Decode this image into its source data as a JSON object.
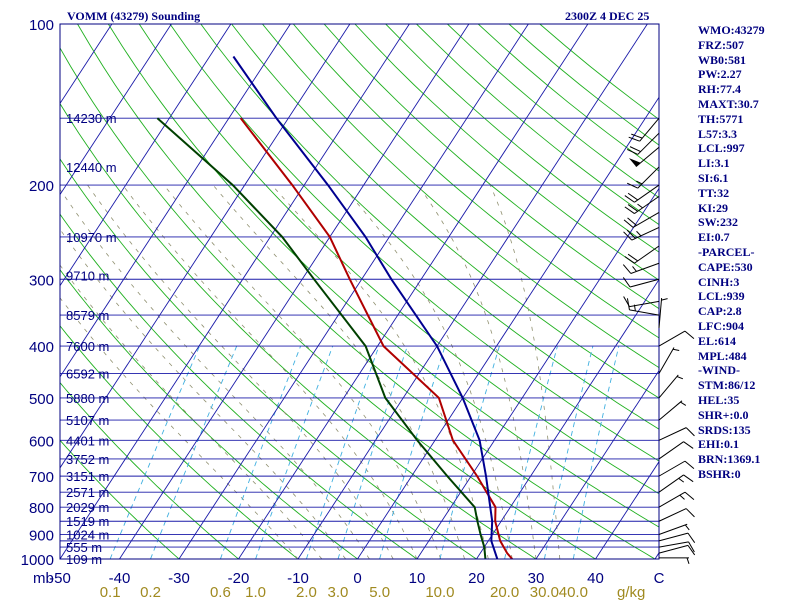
{
  "header": {
    "station": "VOMM (43279) Sounding",
    "time": "2300Z  4 DEC 25"
  },
  "indices": [
    "WMO:43279",
    "FRZ:507",
    "WB0:581",
    "PW:2.27",
    "RH:77.4",
    "MAXT:30.7",
    "TH:5771",
    "L57:3.3",
    "LCL:997",
    "LI:3.1",
    "SI:6.1",
    "TT:32",
    "KI:29",
    "SW:232",
    "EI:0.7",
    "-PARCEL-",
    "CAPE:530",
    "CINH:3",
    "LCL:939",
    "CAP:2.8",
    "LFC:904",
    "EL:614",
    "MPL:484",
    "-WIND-",
    "STM:86/12",
    "HEL:35",
    "SHR+:0.0",
    "SRDS:135",
    "EHI:0.1",
    "BRN:1369.1",
    "BSHR:0"
  ],
  "chart_data": {
    "type": "skew-t",
    "title": "VOMM (43279) Sounding",
    "xlabel": "C",
    "x_unit_label": "mb",
    "mixing_ratio_unit": "g/kg",
    "pressure_range": [
      1000,
      100
    ],
    "temperature_range": [
      -50,
      50
    ],
    "pressure_ticks": [
      {
        "p": 100,
        "label": "100"
      },
      {
        "p": 200,
        "label": "200"
      },
      {
        "p": 300,
        "label": "300"
      },
      {
        "p": 400,
        "label": "400"
      },
      {
        "p": 500,
        "label": "500"
      },
      {
        "p": 600,
        "label": "600"
      },
      {
        "p": 700,
        "label": "700"
      },
      {
        "p": 800,
        "label": "800"
      },
      {
        "p": 900,
        "label": "900"
      },
      {
        "p": 1000,
        "label": "1000"
      }
    ],
    "temperature_ticks": [
      {
        "t": -50,
        "label": "-50"
      },
      {
        "t": -40,
        "label": "-40"
      },
      {
        "t": -30,
        "label": "-30"
      },
      {
        "t": -20,
        "label": "-20"
      },
      {
        "t": -10,
        "label": "-10"
      },
      {
        "t": 0,
        "label": "0"
      },
      {
        "t": 10,
        "label": "10"
      },
      {
        "t": 20,
        "label": "20"
      },
      {
        "t": 30,
        "label": "30"
      },
      {
        "t": 40,
        "label": "40"
      }
    ],
    "mixing_ratio_labels": [
      "0.1",
      "0.2",
      "0.6",
      "1.0",
      "2.0",
      "3.0",
      "5.0",
      "10.0",
      "20.0",
      "30.0",
      "40.0"
    ],
    "height_labels": [
      {
        "p": 150,
        "label": "14230 m"
      },
      {
        "p": 185,
        "label": "12440 m"
      },
      {
        "p": 250,
        "label": "10970 m"
      },
      {
        "p": 295,
        "label": "9710 m"
      },
      {
        "p": 350,
        "label": "8579 m"
      },
      {
        "p": 400,
        "label": "7600 m"
      },
      {
        "p": 450,
        "label": "6592 m"
      },
      {
        "p": 500,
        "label": "5880 m"
      },
      {
        "p": 550,
        "label": "5107 m"
      },
      {
        "p": 600,
        "label": "4401 m"
      },
      {
        "p": 650,
        "label": "3752 m"
      },
      {
        "p": 700,
        "label": "3151 m"
      },
      {
        "p": 750,
        "label": "2571 m"
      },
      {
        "p": 800,
        "label": "2029 m"
      },
      {
        "p": 850,
        "label": "1519 m"
      },
      {
        "p": 900,
        "label": "1024 m"
      },
      {
        "p": 950,
        "label": "555 m"
      },
      {
        "p": 1000,
        "label": "109 m"
      }
    ],
    "series": [
      {
        "name": "temperature",
        "color": "#b00000",
        "points": [
          {
            "p": 1000,
            "t": 26
          },
          {
            "p": 975,
            "t": 24.5
          },
          {
            "p": 925,
            "t": 22
          },
          {
            "p": 850,
            "t": 19
          },
          {
            "p": 800,
            "t": 17.5
          },
          {
            "p": 700,
            "t": 11
          },
          {
            "p": 600,
            "t": 3
          },
          {
            "p": 500,
            "t": -4
          },
          {
            "p": 400,
            "t": -19
          },
          {
            "p": 300,
            "t": -32
          },
          {
            "p": 250,
            "t": -40
          },
          {
            "p": 200,
            "t": -52
          },
          {
            "p": 150,
            "t": -68
          }
        ]
      },
      {
        "name": "dewpoint",
        "color": "#004000",
        "points": [
          {
            "p": 1000,
            "t": 21.5
          },
          {
            "p": 950,
            "t": 20
          },
          {
            "p": 900,
            "t": 18
          },
          {
            "p": 850,
            "t": 16
          },
          {
            "p": 800,
            "t": 14
          },
          {
            "p": 700,
            "t": 6
          },
          {
            "p": 600,
            "t": -3
          },
          {
            "p": 500,
            "t": -13
          },
          {
            "p": 400,
            "t": -22
          },
          {
            "p": 300,
            "t": -38
          },
          {
            "p": 250,
            "t": -48
          },
          {
            "p": 200,
            "t": -62
          },
          {
            "p": 150,
            "t": -82
          }
        ]
      },
      {
        "name": "parcel",
        "color": "#000090",
        "points": [
          {
            "p": 1000,
            "t": 23.5
          },
          {
            "p": 925,
            "t": 20.5
          },
          {
            "p": 850,
            "t": 18.5
          },
          {
            "p": 700,
            "t": 12.5
          },
          {
            "p": 600,
            "t": 7.5
          },
          {
            "p": 500,
            "t": 0
          },
          {
            "p": 400,
            "t": -10
          },
          {
            "p": 300,
            "t": -25
          },
          {
            "p": 250,
            "t": -34
          },
          {
            "p": 200,
            "t": -46
          },
          {
            "p": 150,
            "t": -62
          },
          {
            "p": 115,
            "t": -76
          }
        ]
      }
    ],
    "wind_barbs": [
      {
        "p": 995,
        "dir": 270,
        "kt": 5
      },
      {
        "p": 975,
        "dir": 255,
        "kt": 10
      },
      {
        "p": 950,
        "dir": 260,
        "kt": 10
      },
      {
        "p": 925,
        "dir": 255,
        "kt": 10
      },
      {
        "p": 900,
        "dir": 250,
        "kt": 5
      },
      {
        "p": 850,
        "dir": 245,
        "kt": 10
      },
      {
        "p": 800,
        "dir": 240,
        "kt": 15
      },
      {
        "p": 750,
        "dir": 235,
        "kt": 15
      },
      {
        "p": 700,
        "dir": 240,
        "kt": 10
      },
      {
        "p": 650,
        "dir": 235,
        "kt": 10
      },
      {
        "p": 600,
        "dir": 245,
        "kt": 10
      },
      {
        "p": 550,
        "dir": 230,
        "kt": 5
      },
      {
        "p": 500,
        "dir": 220,
        "kt": 5
      },
      {
        "p": 450,
        "dir": 210,
        "kt": 5
      },
      {
        "p": 400,
        "dir": 240,
        "kt": 10
      },
      {
        "p": 370,
        "dir": 185,
        "kt": 5
      },
      {
        "p": 350,
        "dir": 100,
        "kt": 15
      },
      {
        "p": 330,
        "dir": 80,
        "kt": 10
      },
      {
        "p": 300,
        "dir": 75,
        "kt": 10
      },
      {
        "p": 280,
        "dir": 70,
        "kt": 15
      },
      {
        "p": 260,
        "dir": 55,
        "kt": 20
      },
      {
        "p": 240,
        "dir": 65,
        "kt": 25
      },
      {
        "p": 225,
        "dir": 60,
        "kt": 20
      },
      {
        "p": 210,
        "dir": 55,
        "kt": 25
      },
      {
        "p": 200,
        "dir": 55,
        "kt": 20
      },
      {
        "p": 185,
        "dir": 45,
        "kt": 15
      },
      {
        "p": 170,
        "dir": 50,
        "kt": 50
      },
      {
        "p": 160,
        "dir": 45,
        "kt": 20
      },
      {
        "p": 150,
        "dir": 40,
        "kt": 20
      }
    ]
  }
}
